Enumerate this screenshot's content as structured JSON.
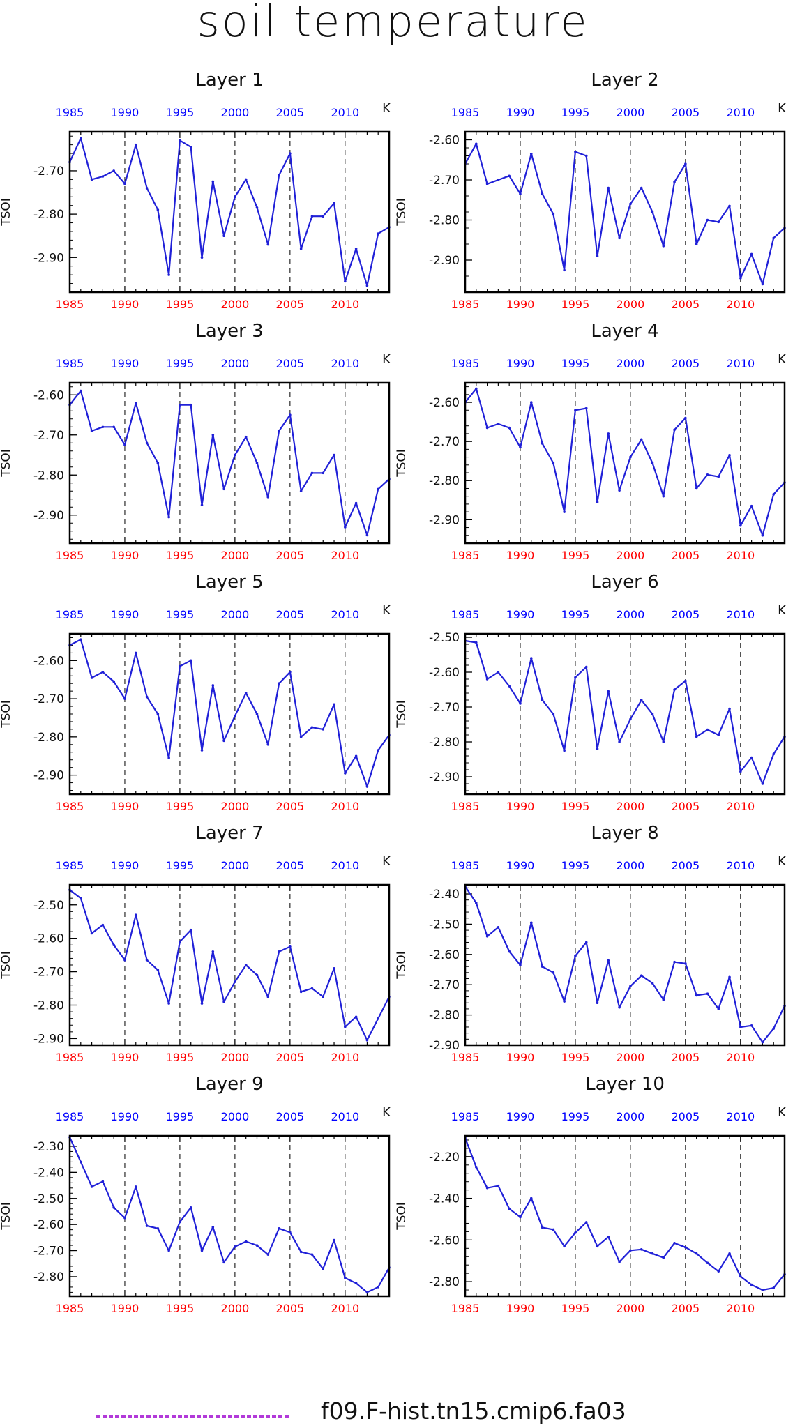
{
  "page": {
    "title": "soil temperature"
  },
  "legend": {
    "label": "f09.F-hist.tn15.cmip6.fa03",
    "color": "#b23ad9"
  },
  "colors": {
    "line": "#2020d8",
    "top_ticks": "#0000ff",
    "bottom_ticks": "#ff0000",
    "frame": "#000000"
  },
  "chart_data": [
    {
      "type": "line",
      "title": "Layer 1",
      "ylabel": "TSOI",
      "units": "K",
      "xlim": [
        1985,
        2014
      ],
      "ylim": [
        -2.98,
        -2.61
      ],
      "xticks": [
        1985,
        1990,
        1995,
        2000,
        2005,
        2010
      ],
      "yticks": [
        -2.7,
        -2.8,
        -2.9
      ],
      "ytick_labels": [
        "-2.70",
        "-2.80",
        "-2.90"
      ],
      "x": [
        1985,
        1986,
        1987,
        1988,
        1989,
        1990,
        1991,
        1992,
        1993,
        1994,
        1995,
        1996,
        1997,
        1998,
        1999,
        2000,
        2001,
        2002,
        2003,
        2004,
        2005,
        2006,
        2007,
        2008,
        2009,
        2010,
        2011,
        2012,
        2013,
        2014
      ],
      "y": [
        -2.68,
        -2.625,
        -2.72,
        -2.713,
        -2.7,
        -2.73,
        -2.64,
        -2.74,
        -2.79,
        -2.94,
        -2.63,
        -2.645,
        -2.9,
        -2.725,
        -2.85,
        -2.76,
        -2.72,
        -2.785,
        -2.87,
        -2.71,
        -2.66,
        -2.88,
        -2.805,
        -2.805,
        -2.775,
        -2.955,
        -2.88,
        -2.965,
        -2.845,
        -2.83
      ]
    },
    {
      "type": "line",
      "title": "Layer 2",
      "ylabel": "TSOI",
      "units": "K",
      "xlim": [
        1985,
        2014
      ],
      "ylim": [
        -2.98,
        -2.58
      ],
      "xticks": [
        1985,
        1990,
        1995,
        2000,
        2005,
        2010
      ],
      "yticks": [
        -2.6,
        -2.7,
        -2.8,
        -2.9
      ],
      "ytick_labels": [
        "-2.60",
        "-2.70",
        "-2.80",
        "-2.90"
      ],
      "x": [
        1985,
        1986,
        1987,
        1988,
        1989,
        1990,
        1991,
        1992,
        1993,
        1994,
        1995,
        1996,
        1997,
        1998,
        1999,
        2000,
        2001,
        2002,
        2003,
        2004,
        2005,
        2006,
        2007,
        2008,
        2009,
        2010,
        2011,
        2012,
        2013,
        2014
      ],
      "y": [
        -2.66,
        -2.61,
        -2.71,
        -2.7,
        -2.69,
        -2.735,
        -2.635,
        -2.735,
        -2.785,
        -2.925,
        -2.63,
        -2.64,
        -2.89,
        -2.72,
        -2.845,
        -2.76,
        -2.72,
        -2.78,
        -2.865,
        -2.705,
        -2.66,
        -2.86,
        -2.8,
        -2.805,
        -2.765,
        -2.945,
        -2.885,
        -2.96,
        -2.845,
        -2.82
      ]
    },
    {
      "type": "line",
      "title": "Layer 3",
      "ylabel": "TSOI",
      "units": "K",
      "xlim": [
        1985,
        2014
      ],
      "ylim": [
        -2.97,
        -2.57
      ],
      "xticks": [
        1985,
        1990,
        1995,
        2000,
        2005,
        2010
      ],
      "yticks": [
        -2.6,
        -2.7,
        -2.8,
        -2.9
      ],
      "ytick_labels": [
        "-2.60",
        "-2.70",
        "-2.80",
        "-2.90"
      ],
      "x": [
        1985,
        1986,
        1987,
        1988,
        1989,
        1990,
        1991,
        1992,
        1993,
        1994,
        1995,
        1996,
        1997,
        1998,
        1999,
        2000,
        2001,
        2002,
        2003,
        2004,
        2005,
        2006,
        2007,
        2008,
        2009,
        2010,
        2011,
        2012,
        2013,
        2014
      ],
      "y": [
        -2.625,
        -2.59,
        -2.69,
        -2.68,
        -2.68,
        -2.725,
        -2.62,
        -2.72,
        -2.77,
        -2.905,
        -2.625,
        -2.625,
        -2.875,
        -2.7,
        -2.835,
        -2.75,
        -2.705,
        -2.77,
        -2.855,
        -2.69,
        -2.65,
        -2.84,
        -2.795,
        -2.795,
        -2.75,
        -2.93,
        -2.87,
        -2.95,
        -2.835,
        -2.81
      ]
    },
    {
      "type": "line",
      "title": "Layer 4",
      "ylabel": "TSOI",
      "units": "K",
      "xlim": [
        1985,
        2014
      ],
      "ylim": [
        -2.96,
        -2.55
      ],
      "xticks": [
        1985,
        1990,
        1995,
        2000,
        2005,
        2010
      ],
      "yticks": [
        -2.6,
        -2.7,
        -2.8,
        -2.9
      ],
      "ytick_labels": [
        "-2.60",
        "-2.70",
        "-2.80",
        "-2.90"
      ],
      "x": [
        1985,
        1986,
        1987,
        1988,
        1989,
        1990,
        1991,
        1992,
        1993,
        1994,
        1995,
        1996,
        1997,
        1998,
        1999,
        2000,
        2001,
        2002,
        2003,
        2004,
        2005,
        2006,
        2007,
        2008,
        2009,
        2010,
        2011,
        2012,
        2013,
        2014
      ],
      "y": [
        -2.6,
        -2.565,
        -2.665,
        -2.655,
        -2.665,
        -2.715,
        -2.6,
        -2.705,
        -2.755,
        -2.88,
        -2.62,
        -2.615,
        -2.855,
        -2.68,
        -2.825,
        -2.74,
        -2.695,
        -2.755,
        -2.84,
        -2.67,
        -2.64,
        -2.82,
        -2.785,
        -2.79,
        -2.735,
        -2.915,
        -2.865,
        -2.94,
        -2.835,
        -2.805
      ]
    },
    {
      "type": "line",
      "title": "Layer 5",
      "ylabel": "TSOI",
      "units": "K",
      "xlim": [
        1985,
        2014
      ],
      "ylim": [
        -2.95,
        -2.53
      ],
      "xticks": [
        1985,
        1990,
        1995,
        2000,
        2005,
        2010
      ],
      "yticks": [
        -2.6,
        -2.7,
        -2.8,
        -2.9
      ],
      "ytick_labels": [
        "-2.60",
        "-2.70",
        "-2.80",
        "-2.90"
      ],
      "x": [
        1985,
        1986,
        1987,
        1988,
        1989,
        1990,
        1991,
        1992,
        1993,
        1994,
        1995,
        1996,
        1997,
        1998,
        1999,
        2000,
        2001,
        2002,
        2003,
        2004,
        2005,
        2006,
        2007,
        2008,
        2009,
        2010,
        2011,
        2012,
        2013,
        2014
      ],
      "y": [
        -2.56,
        -2.545,
        -2.645,
        -2.63,
        -2.655,
        -2.7,
        -2.58,
        -2.695,
        -2.74,
        -2.855,
        -2.615,
        -2.6,
        -2.835,
        -2.665,
        -2.81,
        -2.745,
        -2.685,
        -2.74,
        -2.82,
        -2.66,
        -2.63,
        -2.8,
        -2.775,
        -2.78,
        -2.715,
        -2.895,
        -2.85,
        -2.93,
        -2.835,
        -2.795
      ]
    },
    {
      "type": "line",
      "title": "Layer 6",
      "ylabel": "TSOI",
      "units": "K",
      "xlim": [
        1985,
        2014
      ],
      "ylim": [
        -2.95,
        -2.49
      ],
      "xticks": [
        1985,
        1990,
        1995,
        2000,
        2005,
        2010
      ],
      "yticks": [
        -2.5,
        -2.6,
        -2.7,
        -2.8,
        -2.9
      ],
      "ytick_labels": [
        "-2.50",
        "-2.60",
        "-2.70",
        "-2.80",
        "-2.90"
      ],
      "x": [
        1985,
        1986,
        1987,
        1988,
        1989,
        1990,
        1991,
        1992,
        1993,
        1994,
        1995,
        1996,
        1997,
        1998,
        1999,
        2000,
        2001,
        2002,
        2003,
        2004,
        2005,
        2006,
        2007,
        2008,
        2009,
        2010,
        2011,
        2012,
        2013,
        2014
      ],
      "y": [
        -2.51,
        -2.515,
        -2.62,
        -2.6,
        -2.64,
        -2.69,
        -2.56,
        -2.68,
        -2.72,
        -2.825,
        -2.615,
        -2.585,
        -2.82,
        -2.655,
        -2.8,
        -2.735,
        -2.68,
        -2.72,
        -2.8,
        -2.65,
        -2.625,
        -2.785,
        -2.765,
        -2.78,
        -2.705,
        -2.885,
        -2.845,
        -2.92,
        -2.835,
        -2.785
      ]
    },
    {
      "type": "line",
      "title": "Layer 7",
      "ylabel": "TSOI",
      "units": "K",
      "xlim": [
        1985,
        2014
      ],
      "ylim": [
        -2.92,
        -2.44
      ],
      "xticks": [
        1985,
        1990,
        1995,
        2000,
        2005,
        2010
      ],
      "yticks": [
        -2.5,
        -2.6,
        -2.7,
        -2.8,
        -2.9
      ],
      "ytick_labels": [
        "-2.50",
        "-2.60",
        "-2.70",
        "-2.80",
        "-2.90"
      ],
      "x": [
        1985,
        1986,
        1987,
        1988,
        1989,
        1990,
        1991,
        1992,
        1993,
        1994,
        1995,
        1996,
        1997,
        1998,
        1999,
        2000,
        2001,
        2002,
        2003,
        2004,
        2005,
        2006,
        2007,
        2008,
        2009,
        2010,
        2011,
        2012,
        2013,
        2014
      ],
      "y": [
        -2.455,
        -2.48,
        -2.585,
        -2.56,
        -2.62,
        -2.665,
        -2.53,
        -2.665,
        -2.695,
        -2.795,
        -2.61,
        -2.575,
        -2.795,
        -2.64,
        -2.79,
        -2.73,
        -2.68,
        -2.71,
        -2.775,
        -2.64,
        -2.625,
        -2.76,
        -2.75,
        -2.775,
        -2.69,
        -2.865,
        -2.835,
        -2.905,
        -2.84,
        -2.775
      ]
    },
    {
      "type": "line",
      "title": "Layer 8",
      "ylabel": "TSOI",
      "units": "K",
      "xlim": [
        1985,
        2014
      ],
      "ylim": [
        -2.9,
        -2.37
      ],
      "xticks": [
        1985,
        1990,
        1995,
        2000,
        2005,
        2010
      ],
      "yticks": [
        -2.4,
        -2.5,
        -2.6,
        -2.7,
        -2.8,
        -2.9
      ],
      "ytick_labels": [
        "-2.40",
        "-2.50",
        "-2.60",
        "-2.70",
        "-2.80",
        "-2.90"
      ],
      "x": [
        1985,
        1986,
        1987,
        1988,
        1989,
        1990,
        1991,
        1992,
        1993,
        1994,
        1995,
        1996,
        1997,
        1998,
        1999,
        2000,
        2001,
        2002,
        2003,
        2004,
        2005,
        2006,
        2007,
        2008,
        2009,
        2010,
        2011,
        2012,
        2013,
        2014
      ],
      "y": [
        -2.375,
        -2.43,
        -2.54,
        -2.51,
        -2.59,
        -2.635,
        -2.495,
        -2.64,
        -2.66,
        -2.755,
        -2.605,
        -2.56,
        -2.76,
        -2.62,
        -2.775,
        -2.705,
        -2.67,
        -2.695,
        -2.75,
        -2.625,
        -2.63,
        -2.735,
        -2.73,
        -2.78,
        -2.675,
        -2.84,
        -2.835,
        -2.89,
        -2.845,
        -2.77
      ]
    },
    {
      "type": "line",
      "title": "Layer 9",
      "ylabel": "TSOI",
      "units": "K",
      "xlim": [
        1985,
        2014
      ],
      "ylim": [
        -2.875,
        -2.26
      ],
      "xticks": [
        1985,
        1990,
        1995,
        2000,
        2005,
        2010
      ],
      "yticks": [
        -2.3,
        -2.4,
        -2.5,
        -2.6,
        -2.7,
        -2.8
      ],
      "ytick_labels": [
        "-2.30",
        "-2.40",
        "-2.50",
        "-2.60",
        "-2.70",
        "-2.80"
      ],
      "x": [
        1985,
        1986,
        1987,
        1988,
        1989,
        1990,
        1991,
        1992,
        1993,
        1994,
        1995,
        1996,
        1997,
        1998,
        1999,
        2000,
        2001,
        2002,
        2003,
        2004,
        2005,
        2006,
        2007,
        2008,
        2009,
        2010,
        2011,
        2012,
        2013,
        2014
      ],
      "y": [
        -2.265,
        -2.36,
        -2.455,
        -2.435,
        -2.535,
        -2.575,
        -2.455,
        -2.605,
        -2.615,
        -2.7,
        -2.59,
        -2.535,
        -2.7,
        -2.61,
        -2.745,
        -2.685,
        -2.665,
        -2.68,
        -2.715,
        -2.615,
        -2.63,
        -2.705,
        -2.715,
        -2.77,
        -2.66,
        -2.805,
        -2.825,
        -2.86,
        -2.84,
        -2.765
      ]
    },
    {
      "type": "line",
      "title": "Layer 10",
      "ylabel": "TSOI",
      "units": "K",
      "xlim": [
        1985,
        2014
      ],
      "ylim": [
        -2.87,
        -2.1
      ],
      "xticks": [
        1985,
        1990,
        1995,
        2000,
        2005,
        2010
      ],
      "yticks": [
        -2.2,
        -2.4,
        -2.6,
        -2.8
      ],
      "ytick_labels": [
        "-2.20",
        "-2.40",
        "-2.60",
        "-2.80"
      ],
      "x": [
        1985,
        1986,
        1987,
        1988,
        1989,
        1990,
        1991,
        1992,
        1993,
        1994,
        1995,
        1996,
        1997,
        1998,
        1999,
        2000,
        2001,
        2002,
        2003,
        2004,
        2005,
        2006,
        2007,
        2008,
        2009,
        2010,
        2011,
        2012,
        2013,
        2014
      ],
      "y": [
        -2.11,
        -2.25,
        -2.35,
        -2.34,
        -2.45,
        -2.49,
        -2.4,
        -2.54,
        -2.55,
        -2.63,
        -2.565,
        -2.515,
        -2.63,
        -2.585,
        -2.705,
        -2.65,
        -2.645,
        -2.665,
        -2.685,
        -2.615,
        -2.635,
        -2.665,
        -2.71,
        -2.75,
        -2.665,
        -2.775,
        -2.815,
        -2.84,
        -2.83,
        -2.765
      ]
    }
  ]
}
